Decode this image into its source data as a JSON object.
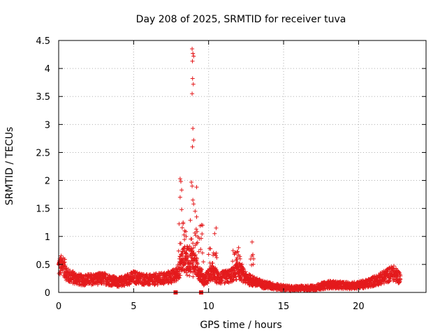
{
  "chart_data": {
    "type": "scatter",
    "title": "Day 208 of 2025, SRMTID for receiver tuva",
    "xlabel": "GPS time / hours",
    "ylabel": "SRMTID / TECUs",
    "xlim": [
      0,
      24.5
    ],
    "ylim": [
      0,
      4.5
    ],
    "xticks": [
      0,
      5,
      10,
      15,
      20
    ],
    "yticks": [
      0,
      0.5,
      1,
      1.5,
      2,
      2.5,
      3,
      3.5,
      4,
      4.5
    ],
    "ytick_labels": [
      "0",
      "0.5",
      "1",
      "1.5",
      "2",
      "2.5",
      "3",
      "3.5",
      "4",
      "4.5"
    ],
    "grid": true,
    "marker": "+",
    "series_color": "#e41a1c",
    "baseline_profile": [
      [
        0.0,
        0.45
      ],
      [
        0.3,
        0.5
      ],
      [
        0.6,
        0.3
      ],
      [
        1.5,
        0.22
      ],
      [
        3.0,
        0.25
      ],
      [
        4.0,
        0.18
      ],
      [
        5.0,
        0.27
      ],
      [
        6.0,
        0.22
      ],
      [
        7.0,
        0.25
      ],
      [
        7.8,
        0.3
      ],
      [
        8.3,
        0.6
      ],
      [
        8.9,
        0.6
      ],
      [
        9.3,
        0.4
      ],
      [
        9.7,
        0.22
      ],
      [
        10.2,
        0.35
      ],
      [
        10.7,
        0.25
      ],
      [
        11.5,
        0.3
      ],
      [
        12.0,
        0.4
      ],
      [
        12.5,
        0.25
      ],
      [
        13.5,
        0.15
      ],
      [
        14.5,
        0.1
      ],
      [
        15.5,
        0.07
      ],
      [
        17.0,
        0.08
      ],
      [
        18.0,
        0.14
      ],
      [
        19.5,
        0.12
      ],
      [
        20.5,
        0.15
      ],
      [
        21.5,
        0.25
      ],
      [
        22.3,
        0.35
      ],
      [
        22.8,
        0.25
      ]
    ],
    "peak_points": [
      [
        8.9,
        4.35
      ],
      [
        8.95,
        4.27
      ],
      [
        9.0,
        4.22
      ],
      [
        8.92,
        4.13
      ],
      [
        8.93,
        3.82
      ],
      [
        8.98,
        3.72
      ],
      [
        8.9,
        3.55
      ],
      [
        8.95,
        2.93
      ],
      [
        9.0,
        2.72
      ],
      [
        8.92,
        2.6
      ],
      [
        8.1,
        2.03
      ],
      [
        8.15,
        1.98
      ],
      [
        8.2,
        1.83
      ],
      [
        8.85,
        1.97
      ],
      [
        8.9,
        1.9
      ],
      [
        9.2,
        1.88
      ],
      [
        8.1,
        1.7
      ],
      [
        8.95,
        1.65
      ],
      [
        9.0,
        1.58
      ],
      [
        8.2,
        1.48
      ],
      [
        9.1,
        1.45
      ],
      [
        9.2,
        1.35
      ],
      [
        9.6,
        1.2
      ],
      [
        10.5,
        1.15
      ],
      [
        10.4,
        1.05
      ],
      [
        8.3,
        1.25
      ],
      [
        8.4,
        1.1
      ],
      [
        8.5,
        1.0
      ],
      [
        8.95,
        0.88
      ],
      [
        12.9,
        0.9
      ],
      [
        12.0,
        0.8
      ],
      [
        11.9,
        0.72
      ],
      [
        13.0,
        0.6
      ],
      [
        10.0,
        0.68
      ],
      [
        12.1,
        0.6
      ]
    ],
    "marks_at_zero": [
      7.8,
      9.5
    ]
  }
}
